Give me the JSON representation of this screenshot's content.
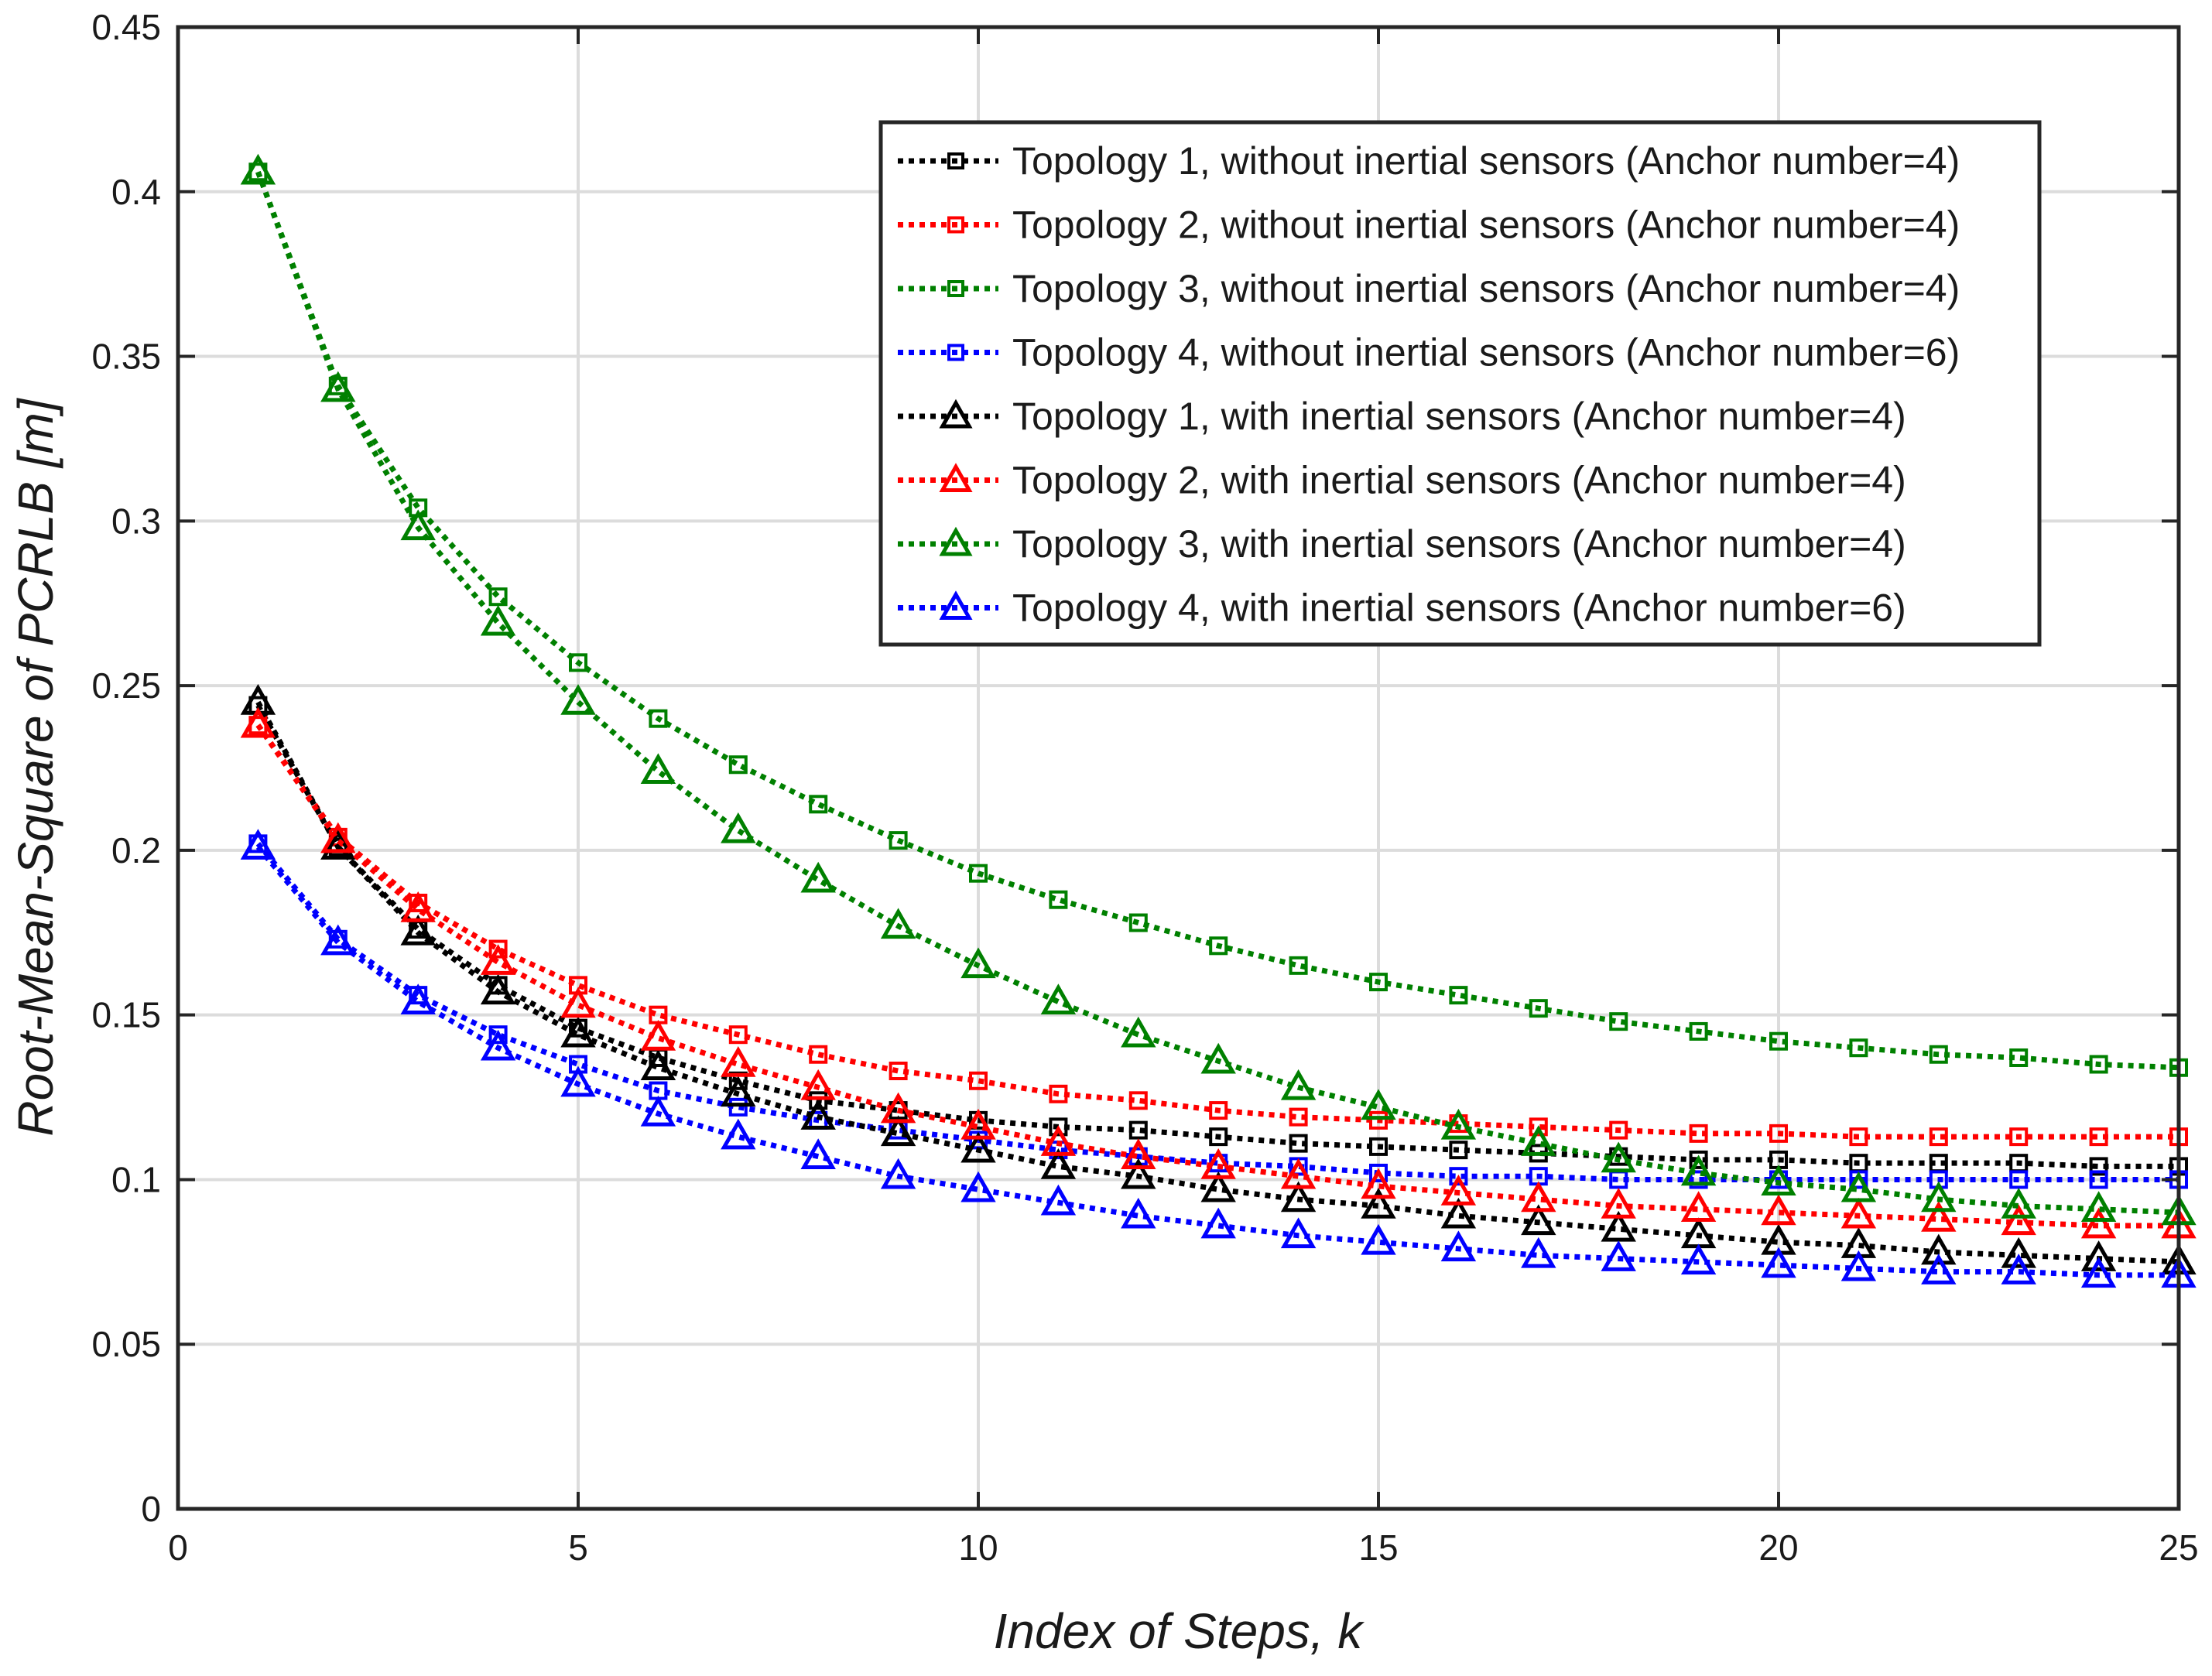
{
  "chart_data": {
    "type": "line",
    "xlabel": "Index of Steps, k",
    "ylabel": "Root-Mean-Square of PCRLB [m]",
    "xlim": [
      0,
      25
    ],
    "ylim": [
      0,
      0.45
    ],
    "xticks": [
      0,
      5,
      10,
      15,
      20,
      25
    ],
    "yticks": [
      0,
      0.05,
      0.1,
      0.15,
      0.2,
      0.25,
      0.3,
      0.35,
      0.4,
      0.45
    ],
    "xtick_labels": [
      "0",
      "5",
      "10",
      "15",
      "20",
      "25"
    ],
    "ytick_labels": [
      "0",
      "0.05",
      "0.1",
      "0.15",
      "0.2",
      "0.25",
      "0.3",
      "0.35",
      "0.4",
      "0.45"
    ],
    "grid": true,
    "legend_position": "top-right",
    "x": [
      1,
      2,
      3,
      4,
      5,
      6,
      7,
      8,
      9,
      10,
      11,
      12,
      13,
      14,
      15,
      16,
      17,
      18,
      19,
      20,
      21,
      22,
      23,
      24,
      25
    ],
    "series": [
      {
        "name": "Topology 1, without inertial sensors (Anchor number=4)",
        "color": "#000000",
        "marker": "square",
        "values": [
          0.244,
          0.201,
          0.176,
          0.159,
          0.146,
          0.137,
          0.13,
          0.124,
          0.121,
          0.118,
          0.116,
          0.115,
          0.113,
          0.111,
          0.11,
          0.109,
          0.108,
          0.107,
          0.106,
          0.106,
          0.105,
          0.105,
          0.105,
          0.104,
          0.104
        ]
      },
      {
        "name": "Topology 2, without inertial sensors (Anchor number=4)",
        "color": "#ff0000",
        "marker": "square",
        "values": [
          0.238,
          0.204,
          0.184,
          0.17,
          0.159,
          0.15,
          0.144,
          0.138,
          0.133,
          0.13,
          0.126,
          0.124,
          0.121,
          0.119,
          0.118,
          0.117,
          0.116,
          0.115,
          0.114,
          0.114,
          0.113,
          0.113,
          0.113,
          0.113,
          0.113
        ]
      },
      {
        "name": "Topology 3, without inertial sensors (Anchor number=4)",
        "color": "#008000",
        "marker": "square",
        "values": [
          0.406,
          0.341,
          0.304,
          0.277,
          0.257,
          0.24,
          0.226,
          0.214,
          0.203,
          0.193,
          0.185,
          0.178,
          0.171,
          0.165,
          0.16,
          0.156,
          0.152,
          0.148,
          0.145,
          0.142,
          0.14,
          0.138,
          0.137,
          0.135,
          0.134
        ]
      },
      {
        "name": "Topology 4, without inertial sensors (Anchor number=6)",
        "color": "#0000ff",
        "marker": "square",
        "values": [
          0.202,
          0.173,
          0.156,
          0.144,
          0.135,
          0.127,
          0.122,
          0.118,
          0.115,
          0.112,
          0.109,
          0.107,
          0.105,
          0.104,
          0.102,
          0.101,
          0.101,
          0.1,
          0.1,
          0.1,
          0.1,
          0.1,
          0.1,
          0.1,
          0.1
        ]
      },
      {
        "name": "Topology 1, with inertial sensors (Anchor number=4)",
        "color": "#000000",
        "marker": "triangle",
        "values": [
          0.245,
          0.201,
          0.175,
          0.157,
          0.144,
          0.134,
          0.126,
          0.119,
          0.114,
          0.109,
          0.104,
          0.101,
          0.097,
          0.094,
          0.092,
          0.089,
          0.087,
          0.085,
          0.083,
          0.081,
          0.08,
          0.078,
          0.077,
          0.076,
          0.075
        ]
      },
      {
        "name": "Topology 2, with inertial sensors (Anchor number=4)",
        "color": "#ff0000",
        "marker": "triangle",
        "values": [
          0.238,
          0.203,
          0.182,
          0.166,
          0.153,
          0.143,
          0.135,
          0.128,
          0.121,
          0.116,
          0.111,
          0.107,
          0.104,
          0.101,
          0.098,
          0.096,
          0.094,
          0.092,
          0.091,
          0.09,
          0.089,
          0.088,
          0.087,
          0.086,
          0.086
        ]
      },
      {
        "name": "Topology 3, with inertial sensors (Anchor number=4)",
        "color": "#008000",
        "marker": "triangle",
        "values": [
          0.406,
          0.34,
          0.298,
          0.269,
          0.245,
          0.224,
          0.206,
          0.191,
          0.177,
          0.165,
          0.154,
          0.144,
          0.136,
          0.128,
          0.122,
          0.116,
          0.111,
          0.106,
          0.102,
          0.099,
          0.097,
          0.094,
          0.092,
          0.091,
          0.09
        ]
      },
      {
        "name": "Topology 4, with inertial sensors (Anchor number=6)",
        "color": "#0000ff",
        "marker": "triangle",
        "values": [
          0.201,
          0.172,
          0.154,
          0.14,
          0.129,
          0.12,
          0.113,
          0.107,
          0.101,
          0.097,
          0.093,
          0.089,
          0.086,
          0.083,
          0.081,
          0.079,
          0.077,
          0.076,
          0.075,
          0.074,
          0.073,
          0.072,
          0.072,
          0.071,
          0.071
        ]
      }
    ]
  }
}
